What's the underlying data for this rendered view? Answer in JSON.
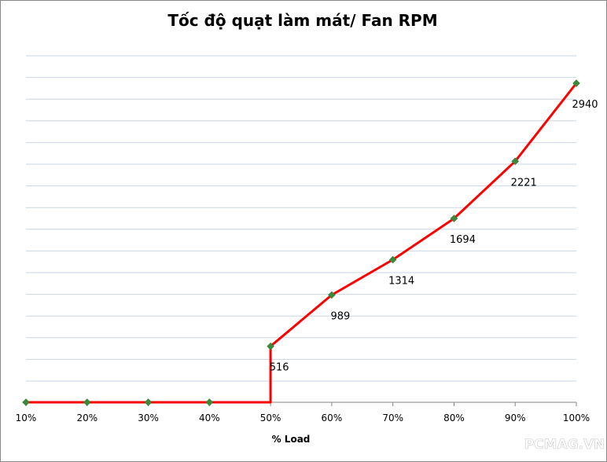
{
  "watermark": "PCMAG.VN",
  "chart_data": {
    "type": "line",
    "title": "Tốc độ quạt làm mát/ Fan RPM",
    "xlabel": "% Load",
    "ylabel": "",
    "categories": [
      "10%",
      "20%",
      "30%",
      "40%",
      "50%",
      "60%",
      "70%",
      "80%",
      "90%",
      "100%"
    ],
    "series": [
      {
        "values": [
          0,
          0,
          0,
          0,
          516,
          989,
          1314,
          1694,
          2221,
          2940
        ],
        "step_up_at_50": 0,
        "color": "#ff0000",
        "marker_color": "#3a8a3a"
      }
    ],
    "data_labels": [
      "",
      "",
      "",
      "",
      "516",
      "989",
      "1314",
      "1694",
      "2221",
      "2940"
    ],
    "ylim": [
      0,
      3200
    ],
    "grid": true,
    "legend": "none"
  }
}
